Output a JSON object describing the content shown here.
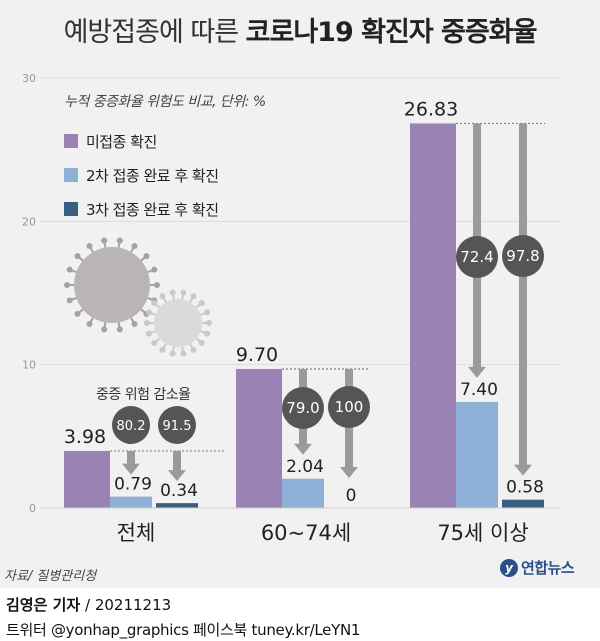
{
  "header": {
    "title_light": "예방접종에 따른",
    "title_bold": "코로나19 확진자 중증화율",
    "subtitle": "누적 중증화율 위험도 비교, 단위: %"
  },
  "chart_data": {
    "type": "bar",
    "categories": [
      "전체",
      "60~74세",
      "75세 이상"
    ],
    "series": [
      {
        "name": "미접종 확진",
        "color": "#9a82b5",
        "values": [
          3.98,
          9.7,
          26.83
        ],
        "labels": [
          "3.98",
          "9.70",
          "26.83"
        ]
      },
      {
        "name": "2차 접종 완료 후 확진",
        "color": "#8eb0d6",
        "values": [
          0.79,
          2.04,
          7.4
        ],
        "labels": [
          "0.79",
          "2.04",
          "7.40"
        ]
      },
      {
        "name": "3차 접종 완료 후 확진",
        "color": "#3b5f80",
        "values": [
          0.34,
          0,
          0.58
        ],
        "labels": [
          "0.34",
          "0",
          "0.58"
        ]
      }
    ],
    "reduction_rates": [
      {
        "category": "전체",
        "dose2": "80.2",
        "dose3": "91.5"
      },
      {
        "category": "60~74세",
        "dose2": "79.0",
        "dose3": "100"
      },
      {
        "category": "75세 이상",
        "dose2": "72.4",
        "dose3": "97.8"
      }
    ],
    "reduction_caption": "중증 위험 감소율",
    "ylim": [
      0,
      30
    ],
    "yticks": [
      "0",
      "10",
      "20",
      "30"
    ],
    "grid": true
  },
  "source": "자료/ 질병관리청",
  "logo": {
    "mark": "y",
    "text": "연합뉴스"
  },
  "credit": {
    "author": "김영은 기자",
    "date": "20211213"
  },
  "social": "트위터 @yonhap_graphics  페이스북 tuney.kr/LeYN1",
  "colors": {
    "background": "#f1f1f1",
    "arrow": "#9a9a9a",
    "bubble": "#555555",
    "dotted": "#8a7aa8"
  }
}
